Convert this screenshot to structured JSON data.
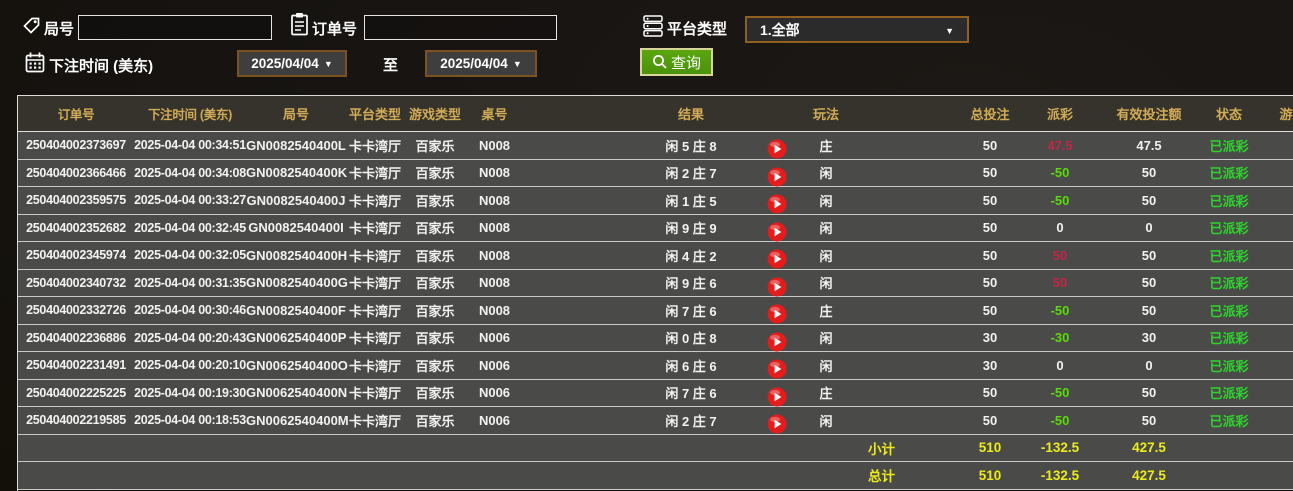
{
  "filters": {
    "round_label": "局号",
    "round_value": "",
    "order_label": "订单号",
    "order_value": "",
    "platform_label": "平台类型",
    "platform_selected": "1.全部",
    "time_label": "下注时间 (美东)",
    "date_from": "2025/04/04",
    "to_label": "至",
    "date_to": "2025/04/04",
    "search_label": "查询"
  },
  "colors": {
    "header_gold": "#d2ab56",
    "win_red": "#c22747",
    "loss_green": "#58dc0a",
    "paid_green": "#2dd42d",
    "totals_yellow": "#ecec1b",
    "button_green": "#4f9a0d",
    "play_red": "#e51c1c"
  },
  "table": {
    "columns": [
      "订单号",
      "下注时间 (美东)",
      "局号",
      "平台类型",
      "游戏类型",
      "桌号",
      "结果",
      "玩法",
      "总投注",
      "派彩",
      "有效投注额",
      "状态",
      "游"
    ],
    "rows": [
      {
        "order_no": "250404002373697",
        "bet_time": "2025-04-04 00:34:51",
        "round_no": "GN0082540400L",
        "platform": "卡卡湾厅",
        "game_type": "百家乐",
        "table_no": "N008",
        "result": "闲 5 庄 8",
        "play_type": "庄",
        "total_bet": "50",
        "payout": "47.5",
        "valid_bet": "47.5",
        "status": "已派彩"
      },
      {
        "order_no": "250404002366466",
        "bet_time": "2025-04-04 00:34:08",
        "round_no": "GN0082540400K",
        "platform": "卡卡湾厅",
        "game_type": "百家乐",
        "table_no": "N008",
        "result": "闲 2 庄 7",
        "play_type": "闲",
        "total_bet": "50",
        "payout": "-50",
        "valid_bet": "50",
        "status": "已派彩"
      },
      {
        "order_no": "250404002359575",
        "bet_time": "2025-04-04 00:33:27",
        "round_no": "GN0082540400J",
        "platform": "卡卡湾厅",
        "game_type": "百家乐",
        "table_no": "N008",
        "result": "闲 1 庄 5",
        "play_type": "闲",
        "total_bet": "50",
        "payout": "-50",
        "valid_bet": "50",
        "status": "已派彩"
      },
      {
        "order_no": "250404002352682",
        "bet_time": "2025-04-04 00:32:45",
        "round_no": "GN0082540400I",
        "platform": "卡卡湾厅",
        "game_type": "百家乐",
        "table_no": "N008",
        "result": "闲 9 庄 9",
        "play_type": "闲",
        "total_bet": "50",
        "payout": "0",
        "valid_bet": "0",
        "status": "已派彩"
      },
      {
        "order_no": "250404002345974",
        "bet_time": "2025-04-04 00:32:05",
        "round_no": "GN0082540400H",
        "platform": "卡卡湾厅",
        "game_type": "百家乐",
        "table_no": "N008",
        "result": "闲 4 庄 2",
        "play_type": "闲",
        "total_bet": "50",
        "payout": "50",
        "valid_bet": "50",
        "status": "已派彩"
      },
      {
        "order_no": "250404002340732",
        "bet_time": "2025-04-04 00:31:35",
        "round_no": "GN0082540400G",
        "platform": "卡卡湾厅",
        "game_type": "百家乐",
        "table_no": "N008",
        "result": "闲 9 庄 6",
        "play_type": "闲",
        "total_bet": "50",
        "payout": "50",
        "valid_bet": "50",
        "status": "已派彩"
      },
      {
        "order_no": "250404002332726",
        "bet_time": "2025-04-04 00:30:46",
        "round_no": "GN0082540400F",
        "platform": "卡卡湾厅",
        "game_type": "百家乐",
        "table_no": "N008",
        "result": "闲 7 庄 6",
        "play_type": "庄",
        "total_bet": "50",
        "payout": "-50",
        "valid_bet": "50",
        "status": "已派彩"
      },
      {
        "order_no": "250404002236886",
        "bet_time": "2025-04-04 00:20:43",
        "round_no": "GN0062540400P",
        "platform": "卡卡湾厅",
        "game_type": "百家乐",
        "table_no": "N006",
        "result": "闲 0 庄 8",
        "play_type": "闲",
        "total_bet": "30",
        "payout": "-30",
        "valid_bet": "30",
        "status": "已派彩"
      },
      {
        "order_no": "250404002231491",
        "bet_time": "2025-04-04 00:20:10",
        "round_no": "GN0062540400O",
        "platform": "卡卡湾厅",
        "game_type": "百家乐",
        "table_no": "N006",
        "result": "闲 6 庄 6",
        "play_type": "闲",
        "total_bet": "30",
        "payout": "0",
        "valid_bet": "0",
        "status": "已派彩"
      },
      {
        "order_no": "250404002225225",
        "bet_time": "2025-04-04 00:19:30",
        "round_no": "GN0062540400N",
        "platform": "卡卡湾厅",
        "game_type": "百家乐",
        "table_no": "N006",
        "result": "闲 7 庄 6",
        "play_type": "庄",
        "total_bet": "50",
        "payout": "-50",
        "valid_bet": "50",
        "status": "已派彩"
      },
      {
        "order_no": "250404002219585",
        "bet_time": "2025-04-04 00:18:53",
        "round_no": "GN0062540400M",
        "platform": "卡卡湾厅",
        "game_type": "百家乐",
        "table_no": "N006",
        "result": "闲 2 庄 7",
        "play_type": "闲",
        "total_bet": "50",
        "payout": "-50",
        "valid_bet": "50",
        "status": "已派彩"
      }
    ],
    "totals": [
      {
        "label": "小计",
        "total_bet": "510",
        "payout": "-132.5",
        "valid_bet": "427.5"
      },
      {
        "label": "总计",
        "total_bet": "510",
        "payout": "-132.5",
        "valid_bet": "427.5"
      }
    ]
  }
}
